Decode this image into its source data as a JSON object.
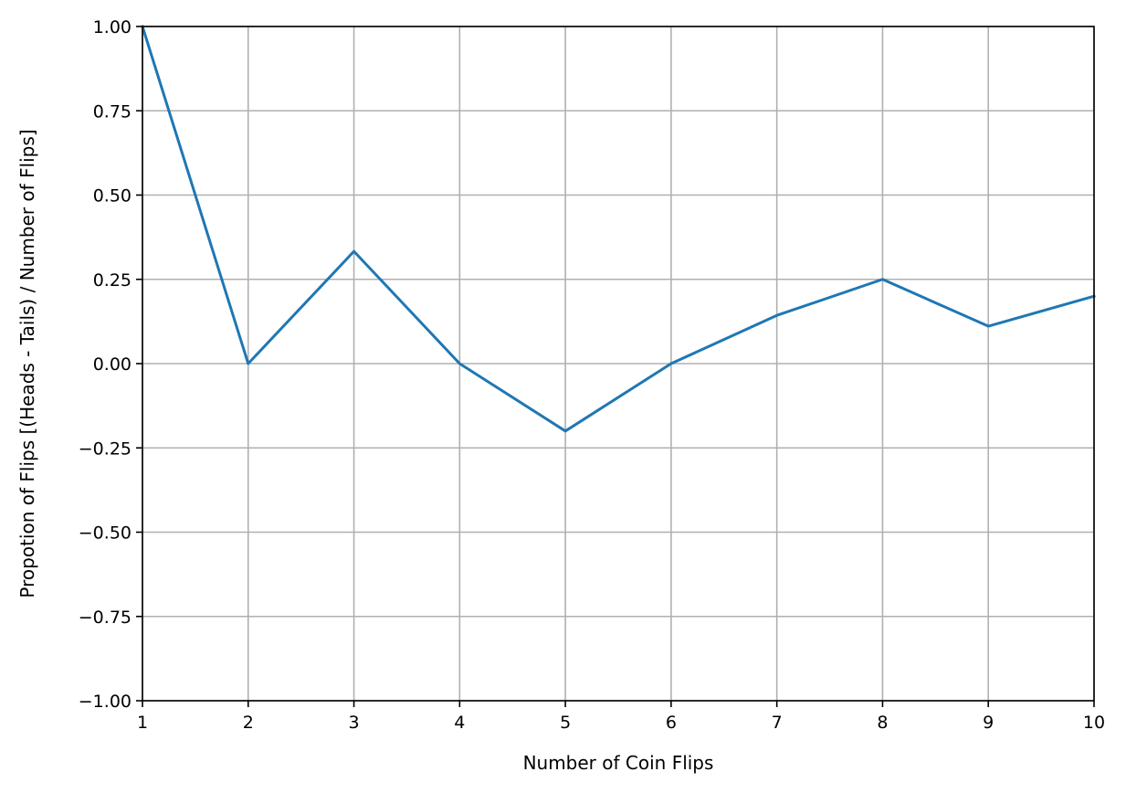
{
  "chart_data": {
    "type": "line",
    "xlabel": "Number of Coin Flips",
    "ylabel": "Propotion of Flips [(Heads - Tails) / Number of Flips]",
    "xlim": [
      1,
      10
    ],
    "ylim": [
      -1,
      1
    ],
    "grid": true,
    "xticks": [
      1,
      2,
      3,
      4,
      5,
      6,
      7,
      8,
      9,
      10
    ],
    "xtick_labels": [
      "1",
      "2",
      "3",
      "4",
      "5",
      "6",
      "7",
      "8",
      "9",
      "10"
    ],
    "yticks": [
      -1,
      -0.75,
      -0.5,
      -0.25,
      0,
      0.25,
      0.5,
      0.75,
      1
    ],
    "ytick_labels": [
      "−1.00",
      "−0.75",
      "−0.50",
      "−0.25",
      "0.00",
      "0.25",
      "0.50",
      "0.75",
      "1.00"
    ],
    "series": [
      {
        "color": "#1f77b4",
        "x": [
          1,
          2,
          3,
          4,
          5,
          6,
          7,
          8,
          9,
          10
        ],
        "y": [
          1.0,
          0.0,
          0.333,
          0.0,
          -0.2,
          0.0,
          0.143,
          0.25,
          0.111,
          0.2
        ]
      }
    ],
    "colors": {
      "grid": "#b0b0b0",
      "axes": "#000000",
      "line": "#1f77b4"
    }
  }
}
